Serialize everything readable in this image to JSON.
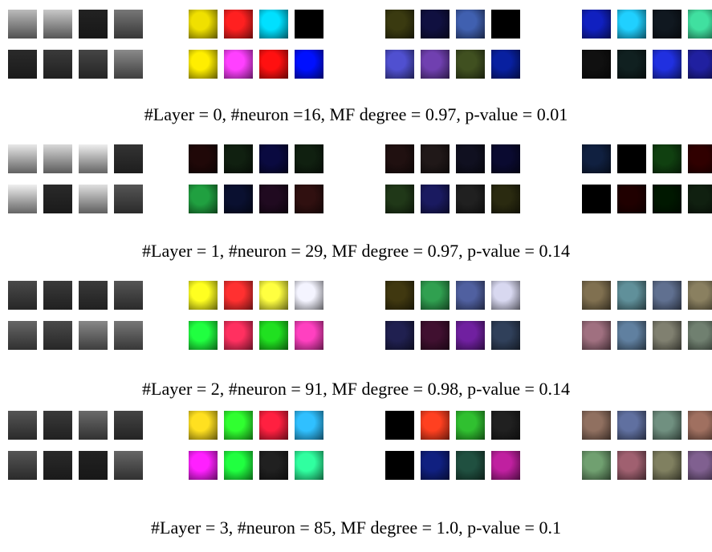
{
  "captions": [
    "#Layer = 0, #neuron =16, MF degree = 0.97, p-value = 0.01",
    "#Layer = 1, #neuron = 29, MF degree = 0.97, p-value = 0.14",
    "#Layer = 2, #neuron = 91, MF degree = 0.98, p-value = 0.14",
    "#Layer = 3, #neuron = 85, MF degree = 1.0, p-value = 0.1"
  ],
  "blocks": [
    {
      "gray": [
        [
          "#bbbbbb",
          "#c8c8c8",
          "#222222",
          "#777777"
        ],
        [
          "#2a2a2a",
          "#3a3a3a",
          "#454545",
          "#8a8a8a"
        ]
      ],
      "seg": [
        [
          "#f0e000",
          "#ff2020",
          "#00e0ff",
          "#000000"
        ],
        [
          "#ffee00",
          "#ff40ff",
          "#ff1010",
          "#0010ff"
        ]
      ],
      "col": [
        [
          "#3a3a10",
          "#101040",
          "#4060b0",
          "#000000"
        ],
        [
          "#5050d0",
          "#7040b0",
          "#405020",
          "#0820a0"
        ]
      ],
      "hi": [
        [
          "#1020c0",
          "#20d0ff",
          "#101820",
          "#40e0a0"
        ],
        [
          "#101010",
          "#102020",
          "#2030e0",
          "#2020a0"
        ]
      ]
    },
    {
      "gray": [
        [
          "#e8e8e8",
          "#d8d8d8",
          "#eeeeee",
          "#333333"
        ],
        [
          "#f0f0f0",
          "#2a2a2a",
          "#e0e0e0",
          "#555555"
        ]
      ],
      "seg": [
        [
          "#200808",
          "#102010",
          "#0a0a40",
          "#102010"
        ],
        [
          "#20a040",
          "#0a1030",
          "#200a20",
          "#301010"
        ]
      ],
      "col": [
        [
          "#201010",
          "#201818",
          "#101020",
          "#0a0a30"
        ],
        [
          "#203818",
          "#1a1a60",
          "#202020",
          "#2a2a10"
        ]
      ],
      "hi": [
        [
          "#102040",
          "#000000",
          "#104010",
          "#300000"
        ],
        [
          "#000000",
          "#200000",
          "#001800",
          "#102010"
        ]
      ]
    },
    {
      "gray": [
        [
          "#4a4a4a",
          "#3a3a3a",
          "#3a3a3a",
          "#555555"
        ],
        [
          "#666666",
          "#4a4a4a",
          "#888888",
          "#777777"
        ]
      ],
      "seg": [
        [
          "#ffff20",
          "#ff3030",
          "#ffff40",
          "#f4f4ff"
        ],
        [
          "#20ff40",
          "#ff3060",
          "#20e020",
          "#ff40c0"
        ]
      ],
      "col": [
        [
          "#403810",
          "#30a050",
          "#5060a0",
          "#d8d8f0"
        ],
        [
          "#202050",
          "#401030",
          "#7020a0",
          "#30405a"
        ]
      ],
      "hi": [
        [
          "#807050",
          "#60909a",
          "#607090",
          "#8a8060"
        ],
        [
          "#a07080",
          "#6080a0",
          "#808070",
          "#708070"
        ]
      ]
    },
    {
      "gray": [
        [
          "#555555",
          "#3a3a3a",
          "#6a6a6a",
          "#444444"
        ],
        [
          "#555555",
          "#2a2a2a",
          "#222222",
          "#666666"
        ]
      ],
      "seg": [
        [
          "#ffe020",
          "#30ff30",
          "#ff2040",
          "#30c0ff"
        ],
        [
          "#ff20ff",
          "#20ff40",
          "#202020",
          "#30ffa0"
        ]
      ],
      "col": [
        [
          "#000000",
          "#ff4020",
          "#30c030",
          "#202020"
        ],
        [
          "#000000",
          "#102080",
          "#205040",
          "#c020a0"
        ]
      ],
      "hi": [
        [
          "#907060",
          "#6070a0",
          "#709080",
          "#a07060"
        ],
        [
          "#70a070",
          "#a06070",
          "#808060",
          "#806090"
        ]
      ]
    }
  ]
}
